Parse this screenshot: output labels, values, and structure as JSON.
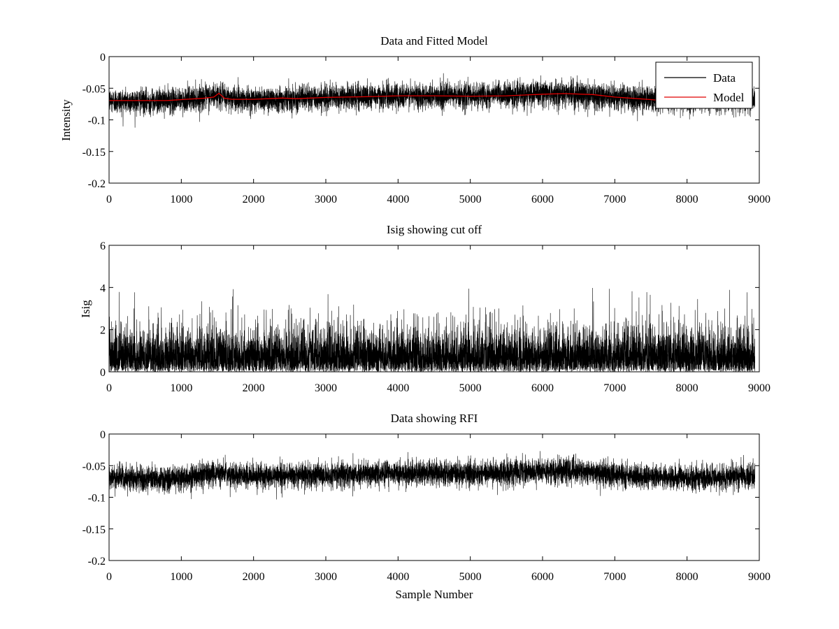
{
  "figure": {
    "background": "#ffffff",
    "data_color": "#000000",
    "model_color": "#e00000"
  },
  "chart_data": [
    {
      "type": "line",
      "title": "Data and Fitted Model",
      "xlabel": "",
      "ylabel": "Intensity",
      "xlim": [
        0,
        9000
      ],
      "ylim": [
        -0.2,
        0
      ],
      "xticks": [
        "0",
        "1000",
        "2000",
        "3000",
        "4000",
        "5000",
        "6000",
        "7000",
        "8000",
        "9000"
      ],
      "yticks": [
        "0",
        "-0.05",
        "-0.1",
        "-0.15",
        "-0.2"
      ],
      "grid": false,
      "legend": {
        "position": "top-right",
        "entries": [
          "Data",
          "Model"
        ]
      },
      "series": [
        {
          "name": "Data",
          "kind": "noise",
          "color": "#000000",
          "n_points": 8940,
          "center_x": [
            0,
            500,
            1000,
            1500,
            1600,
            2000,
            2500,
            3000,
            3500,
            4000,
            4500,
            5000,
            5500,
            6000,
            6300,
            6800,
            7500,
            8000,
            8940
          ],
          "center_y": [
            -0.07,
            -0.071,
            -0.069,
            -0.061,
            -0.065,
            -0.068,
            -0.066,
            -0.065,
            -0.063,
            -0.062,
            -0.062,
            -0.062,
            -0.061,
            -0.059,
            -0.058,
            -0.062,
            -0.068,
            -0.069,
            -0.066
          ],
          "spread": 0.022
        },
        {
          "name": "Model",
          "kind": "line",
          "color": "#e00000",
          "x": [
            0,
            500,
            800,
            1000,
            1300,
            1450,
            1520,
            1600,
            1700,
            2000,
            2400,
            2600,
            3000,
            3500,
            4000,
            4500,
            5000,
            5500,
            6000,
            6300,
            6700,
            7000,
            7500,
            7600
          ],
          "y": [
            -0.0695,
            -0.0695,
            -0.0695,
            -0.068,
            -0.066,
            -0.064,
            -0.058,
            -0.066,
            -0.0675,
            -0.0675,
            -0.0655,
            -0.0665,
            -0.0645,
            -0.0635,
            -0.062,
            -0.062,
            -0.0625,
            -0.062,
            -0.0595,
            -0.0585,
            -0.06,
            -0.064,
            -0.068,
            -0.069
          ]
        }
      ]
    },
    {
      "type": "line",
      "title": "Isig showing cut off",
      "xlabel": "",
      "ylabel": "Isig",
      "xlim": [
        0,
        9000
      ],
      "ylim": [
        0,
        6
      ],
      "xticks": [
        "0",
        "1000",
        "2000",
        "3000",
        "4000",
        "5000",
        "6000",
        "7000",
        "8000",
        "9000"
      ],
      "yticks": [
        "6",
        "4",
        "2",
        "0"
      ],
      "grid": false,
      "series": [
        {
          "kind": "noise-positive",
          "color": "#000000",
          "n_points": 8940,
          "typical_max": 2.5,
          "peak_max": 4.0
        }
      ]
    },
    {
      "type": "line",
      "title": "Data showing RFI",
      "xlabel": "Sample Number",
      "ylabel": "",
      "xlim": [
        0,
        9000
      ],
      "ylim": [
        -0.2,
        0
      ],
      "xticks": [
        "0",
        "1000",
        "2000",
        "3000",
        "4000",
        "5000",
        "6000",
        "7000",
        "8000",
        "9000"
      ],
      "yticks": [
        "0",
        "-0.05",
        "-0.1",
        "-0.15",
        "-0.2"
      ],
      "grid": false,
      "series": [
        {
          "kind": "noise",
          "color": "#000000",
          "n_points": 8940,
          "center_x": [
            0,
            500,
            1000,
            1500,
            1600,
            2000,
            2500,
            3000,
            3500,
            4000,
            4500,
            5000,
            5500,
            6000,
            6300,
            6800,
            7500,
            8000,
            8940
          ],
          "center_y": [
            -0.07,
            -0.071,
            -0.069,
            -0.061,
            -0.065,
            -0.068,
            -0.066,
            -0.065,
            -0.063,
            -0.062,
            -0.062,
            -0.062,
            -0.061,
            -0.059,
            -0.058,
            -0.062,
            -0.068,
            -0.069,
            -0.066
          ],
          "spread": 0.022
        }
      ]
    }
  ]
}
